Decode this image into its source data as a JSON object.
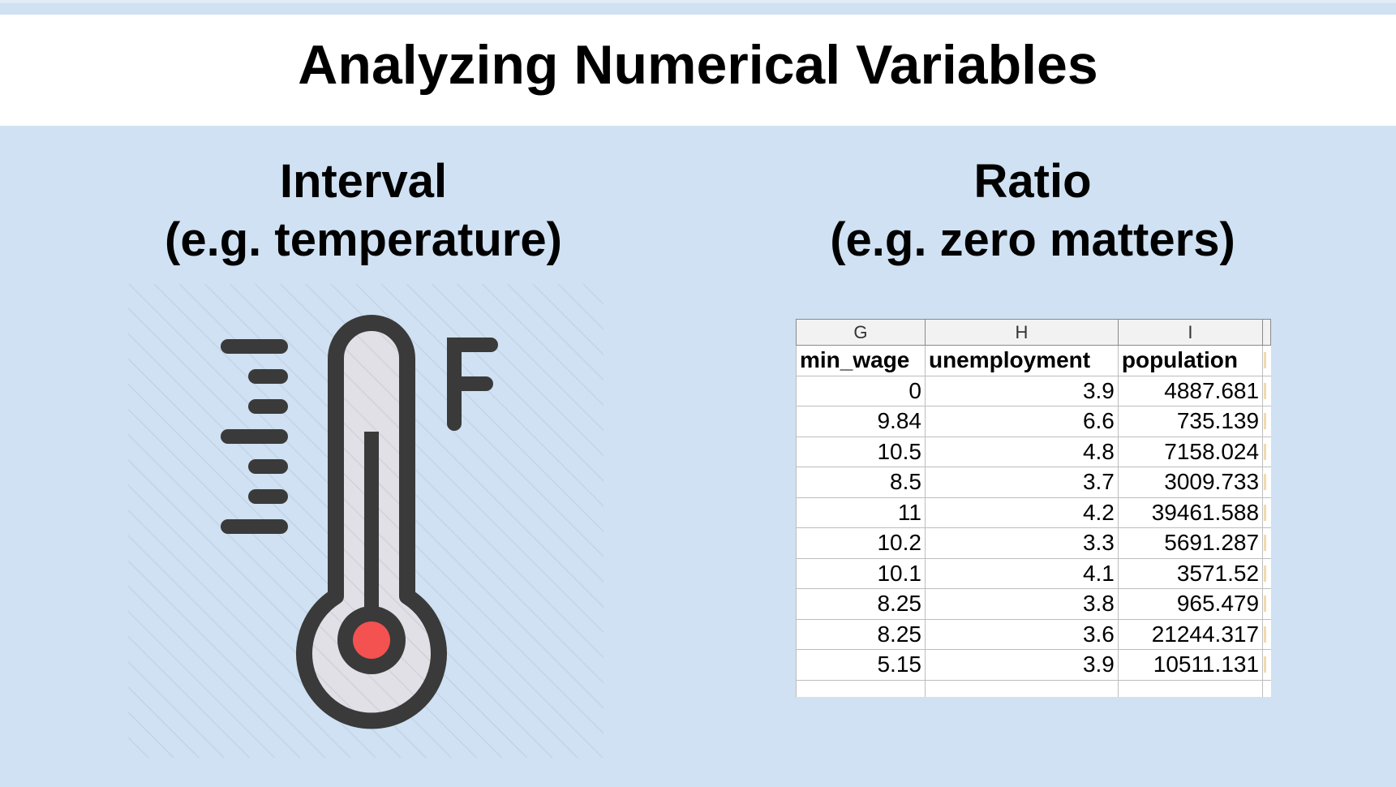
{
  "slide": {
    "title": "Analyzing Numerical Variables"
  },
  "interval": {
    "heading": "Interval",
    "subheading": "(e.g. temperature)",
    "icon": "thermometer-fahrenheit-icon",
    "unit_letter": "F",
    "bulb_color": "#f45151"
  },
  "ratio": {
    "heading": "Ratio",
    "subheading": "(e.g. zero matters)"
  },
  "spreadsheet": {
    "column_letters": [
      "G",
      "H",
      "I"
    ],
    "headers": [
      "min_wage",
      "unemployment",
      "population"
    ],
    "rows": [
      [
        "0",
        "3.9",
        "4887.681"
      ],
      [
        "9.84",
        "6.6",
        "735.139"
      ],
      [
        "10.5",
        "4.8",
        "7158.024"
      ],
      [
        "8.5",
        "3.7",
        "3009.733"
      ],
      [
        "11",
        "4.2",
        "39461.588"
      ],
      [
        "10.2",
        "3.3",
        "5691.287"
      ],
      [
        "10.1",
        "4.1",
        "3571.52"
      ],
      [
        "8.25",
        "3.8",
        "965.479"
      ],
      [
        "8.25",
        "3.6",
        "21244.317"
      ],
      [
        "5.15",
        "3.9",
        "10511.131"
      ]
    ]
  }
}
